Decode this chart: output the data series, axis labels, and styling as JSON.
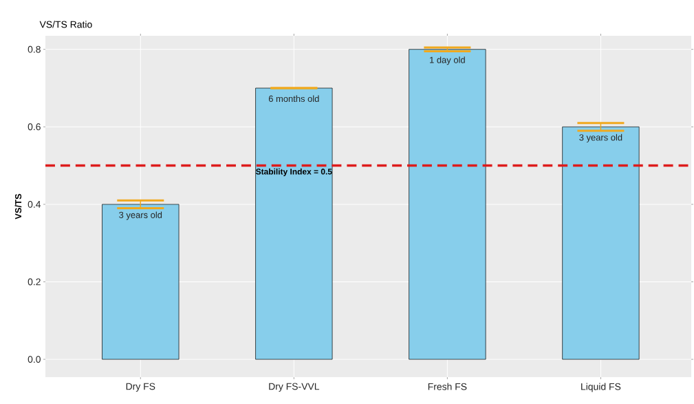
{
  "chart_data": {
    "type": "bar",
    "title": "VS/TS Ratio",
    "ylabel": "VS/TS",
    "categories": [
      "Dry FS",
      "Dry FS-VVL",
      "Fresh FS",
      "Liquid FS"
    ],
    "values": [
      0.4,
      0.7,
      0.8,
      0.6
    ],
    "errors": [
      0.01,
      null,
      0.005,
      0.01
    ],
    "color": "#87ceeb",
    "ylim": [
      -0.046,
      0.835
    ],
    "yticks": [
      {
        "value": 0,
        "label": "0.0"
      },
      0.2,
      0.4,
      0.6,
      0.8
    ],
    "grid": true,
    "ref_lines": [
      {
        "axis": "y",
        "value": 0.5,
        "label": "Stability Index = 0.5",
        "color": "#dd1c1c",
        "line_style": "dashed"
      }
    ],
    "annotations": [
      {
        "text": "3 years old",
        "x": "Dry FS",
        "y": 0.4
      },
      {
        "text": "6 months old",
        "x": "Dry FS-VVL",
        "y": 0.7
      },
      {
        "text": "1 day old",
        "x": "Fresh FS",
        "y": 0.8
      },
      {
        "text": "3 years old",
        "x": "Liquid FS",
        "y": 0.6
      }
    ]
  }
}
